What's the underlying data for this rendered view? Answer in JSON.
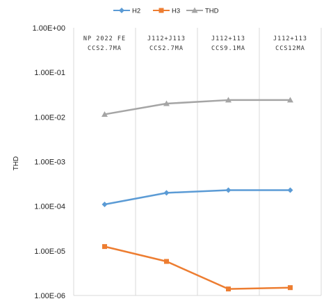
{
  "chart_data": {
    "type": "line",
    "title": "",
    "xlabel": "",
    "ylabel": "THD",
    "yscale": "log",
    "ylim": [
      1e-06,
      1
    ],
    "yticks": [
      "1.00E+00",
      "1.00E-01",
      "1.00E-02",
      "1.00E-03",
      "1.00E-04",
      "1.00E-05",
      "1.00E-06"
    ],
    "categories": [
      [
        "NP 2022 FE",
        "CCS2.7MA"
      ],
      [
        "J112+J113",
        "CCS2.7MA"
      ],
      [
        "J112+113",
        "CCS9.1MA"
      ],
      [
        "J112+113",
        "CCS12MA"
      ]
    ],
    "legend_position": "top",
    "grid": "vertical category dividers",
    "series": [
      {
        "name": "H2",
        "color": "#5b9bd5",
        "marker": "diamond",
        "values": [
          0.00011,
          0.0002,
          0.00023,
          0.00023
        ]
      },
      {
        "name": "H3",
        "color": "#ed7d31",
        "marker": "square",
        "values": [
          1.25e-05,
          5.8e-06,
          1.4e-06,
          1.5e-06
        ]
      },
      {
        "name": "THD",
        "color": "#a5a5a5",
        "marker": "triangle",
        "values": [
          0.0115,
          0.02,
          0.024,
          0.024
        ]
      }
    ]
  }
}
